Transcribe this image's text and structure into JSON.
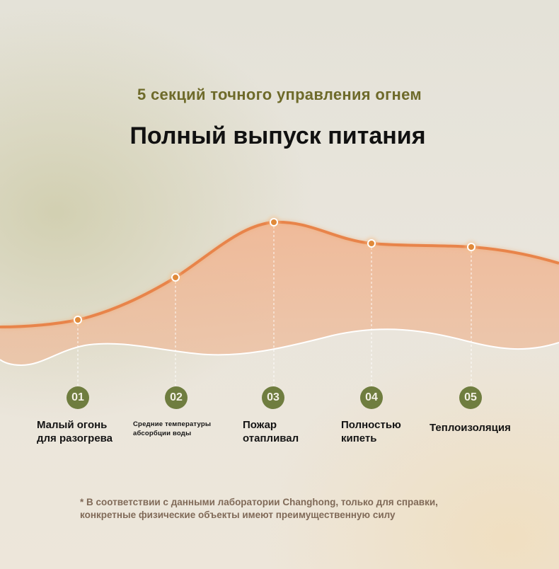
{
  "header": {
    "subtitle": "5 секций точного управления огнем",
    "title": "Полный выпуск питания"
  },
  "steps": [
    {
      "number": "01",
      "label_line1": "Малый огонь",
      "label_line2": "для разогрева"
    },
    {
      "number": "02",
      "label_line1": "Средние температуры",
      "label_line2": "абсорбции воды"
    },
    {
      "number": "03",
      "label_line1": "Пожар",
      "label_line2": "отапливал"
    },
    {
      "number": "04",
      "label_line1": "Полностью",
      "label_line2": "кипеть"
    },
    {
      "number": "05",
      "label_line1": "Теплоизоляция"
    }
  ],
  "footnote": {
    "line1": "* В соответствии с данными лаборатории Changhong, только для справки,",
    "line2": "конкретные физические объекты имеют преимущественную силу"
  },
  "colors": {
    "subtitle": "#6e6a2a",
    "title": "#111111",
    "badge": "#6f7d3f",
    "curve_line": "#e8844a",
    "curve_fill": "#f0b896",
    "footnote": "#806a58"
  }
}
